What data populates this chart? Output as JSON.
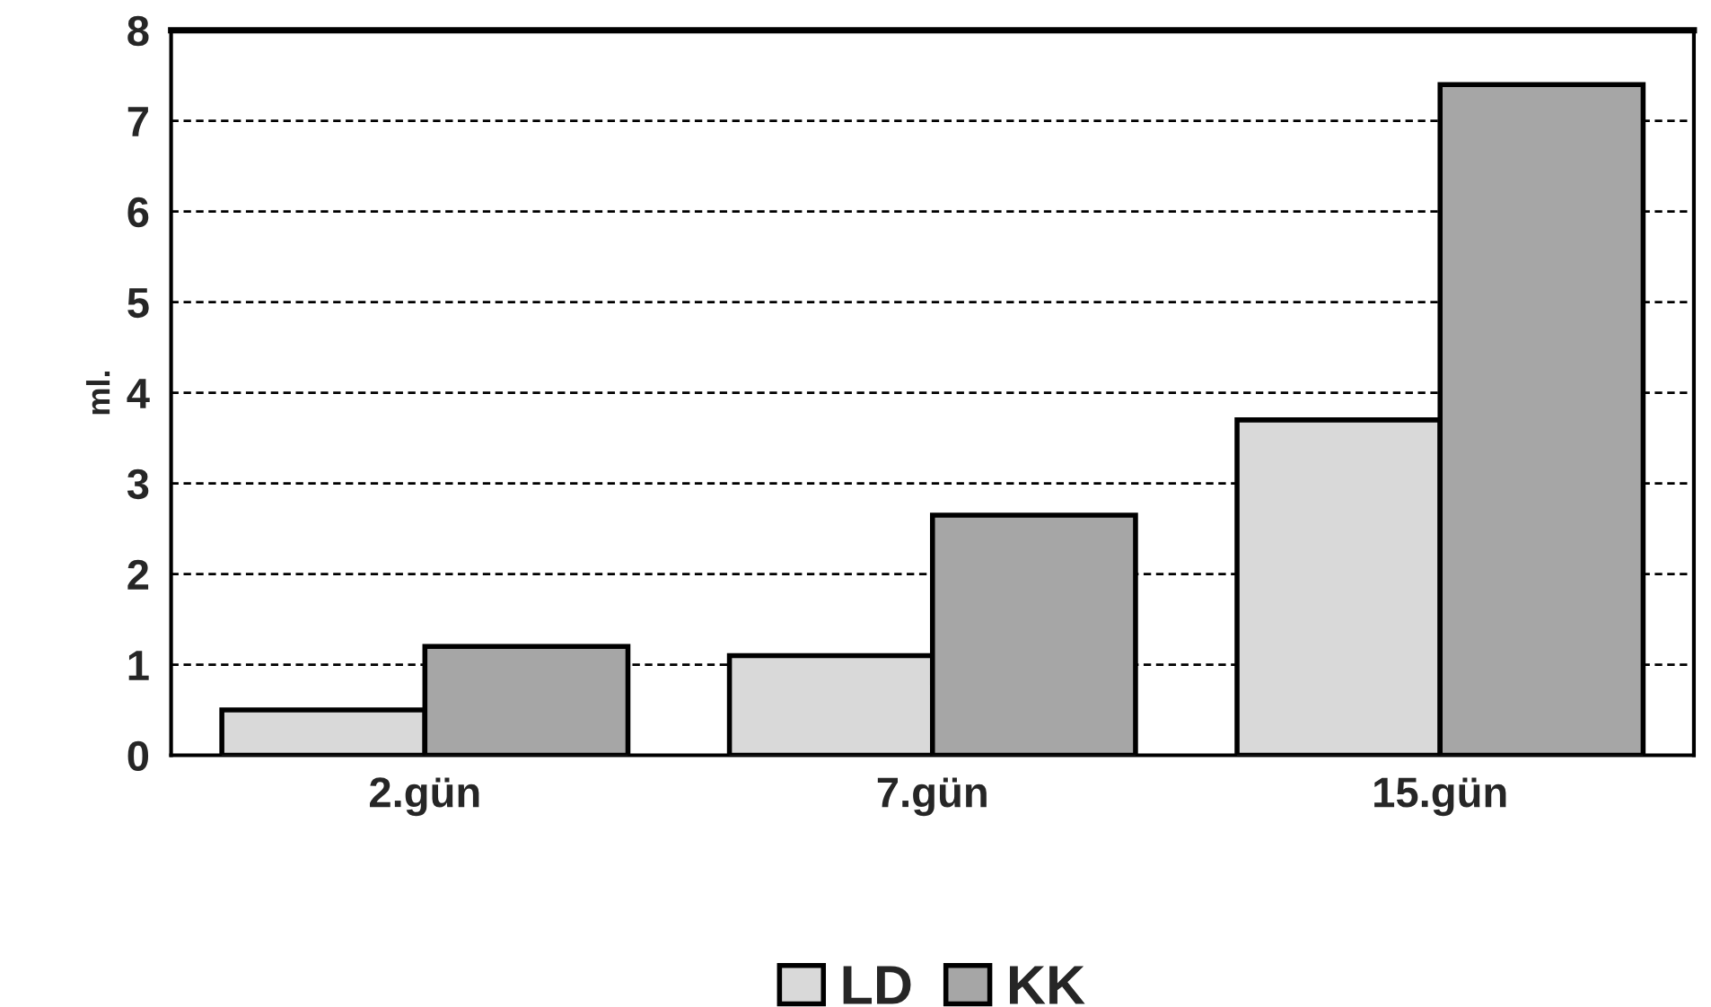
{
  "chart_data": {
    "type": "bar",
    "ylabel": "ml.",
    "categories": [
      "2.gün",
      "7.gün",
      "15.gün"
    ],
    "series": [
      {
        "name": "LD",
        "color": "#d9d9d9",
        "values": [
          0.5,
          1.1,
          3.7
        ]
      },
      {
        "name": "KK",
        "color": "#a6a6a6",
        "values": [
          1.2,
          2.65,
          7.4
        ]
      }
    ],
    "ylim": [
      0,
      8
    ],
    "yticks": [
      0,
      1,
      2,
      3,
      4,
      5,
      6,
      7,
      8
    ],
    "grid": "y",
    "legend": "bottom"
  }
}
